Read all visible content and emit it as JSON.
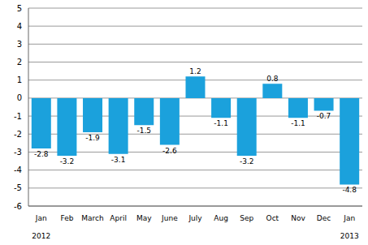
{
  "chart_data": {
    "type": "bar",
    "categories": [
      "Jan",
      "Feb",
      "March",
      "April",
      "May",
      "June",
      "July",
      "Aug",
      "Sep",
      "Oct",
      "Nov",
      "Dec",
      "Jan"
    ],
    "year_labels": [
      "2012",
      null,
      null,
      null,
      null,
      null,
      null,
      null,
      null,
      null,
      null,
      null,
      "2013"
    ],
    "values": [
      -2.8,
      -3.2,
      -1.9,
      -3.1,
      -1.5,
      -2.6,
      1.2,
      -1.1,
      -3.2,
      0.8,
      -1.1,
      -0.7,
      -4.8
    ],
    "color": "#1ba1dc",
    "ylim": [
      -6,
      5
    ],
    "yticks": [
      -6,
      -5,
      -4,
      -3,
      -2,
      -1,
      0,
      1,
      2,
      3,
      4,
      5
    ],
    "grid": true,
    "data_labels": true
  }
}
